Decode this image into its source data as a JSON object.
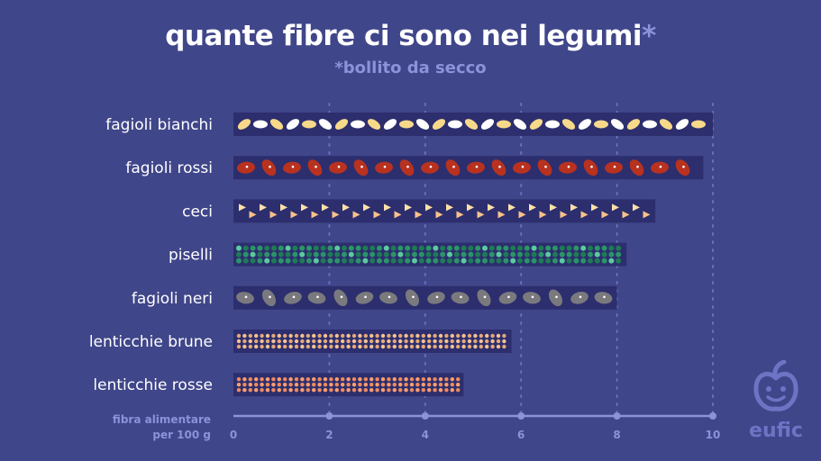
{
  "title": "quante fibre ci sono nei legumi",
  "title_star": "*",
  "subtitle": "*bollito da secco",
  "logo_text": "eufic",
  "colors": {
    "background": "#40468a",
    "bar_background": "#2c2e6e",
    "axis": "#8b93d9"
  },
  "chart_data": {
    "type": "bar",
    "orientation": "horizontal",
    "xlabel": "fibra alimentare per 100 g",
    "xlabel_lines": [
      "fibra alimentare",
      "per 100 g"
    ],
    "xlim": [
      0,
      10
    ],
    "xticks": [
      0,
      2,
      4,
      6,
      8,
      10
    ],
    "grid": true,
    "categories": [
      "fagioli bianchi",
      "fagioli rossi",
      "ceci",
      "piselli",
      "fagioli neri",
      "lenticchie brune",
      "lenticchie rosse"
    ],
    "values": [
      10,
      9.8,
      8.8,
      8.2,
      8.0,
      5.8,
      4.8
    ],
    "patterns": [
      "white-beans",
      "red-beans",
      "chickpeas",
      "peas",
      "black-beans",
      "brown-lentils",
      "red-lentils"
    ]
  }
}
